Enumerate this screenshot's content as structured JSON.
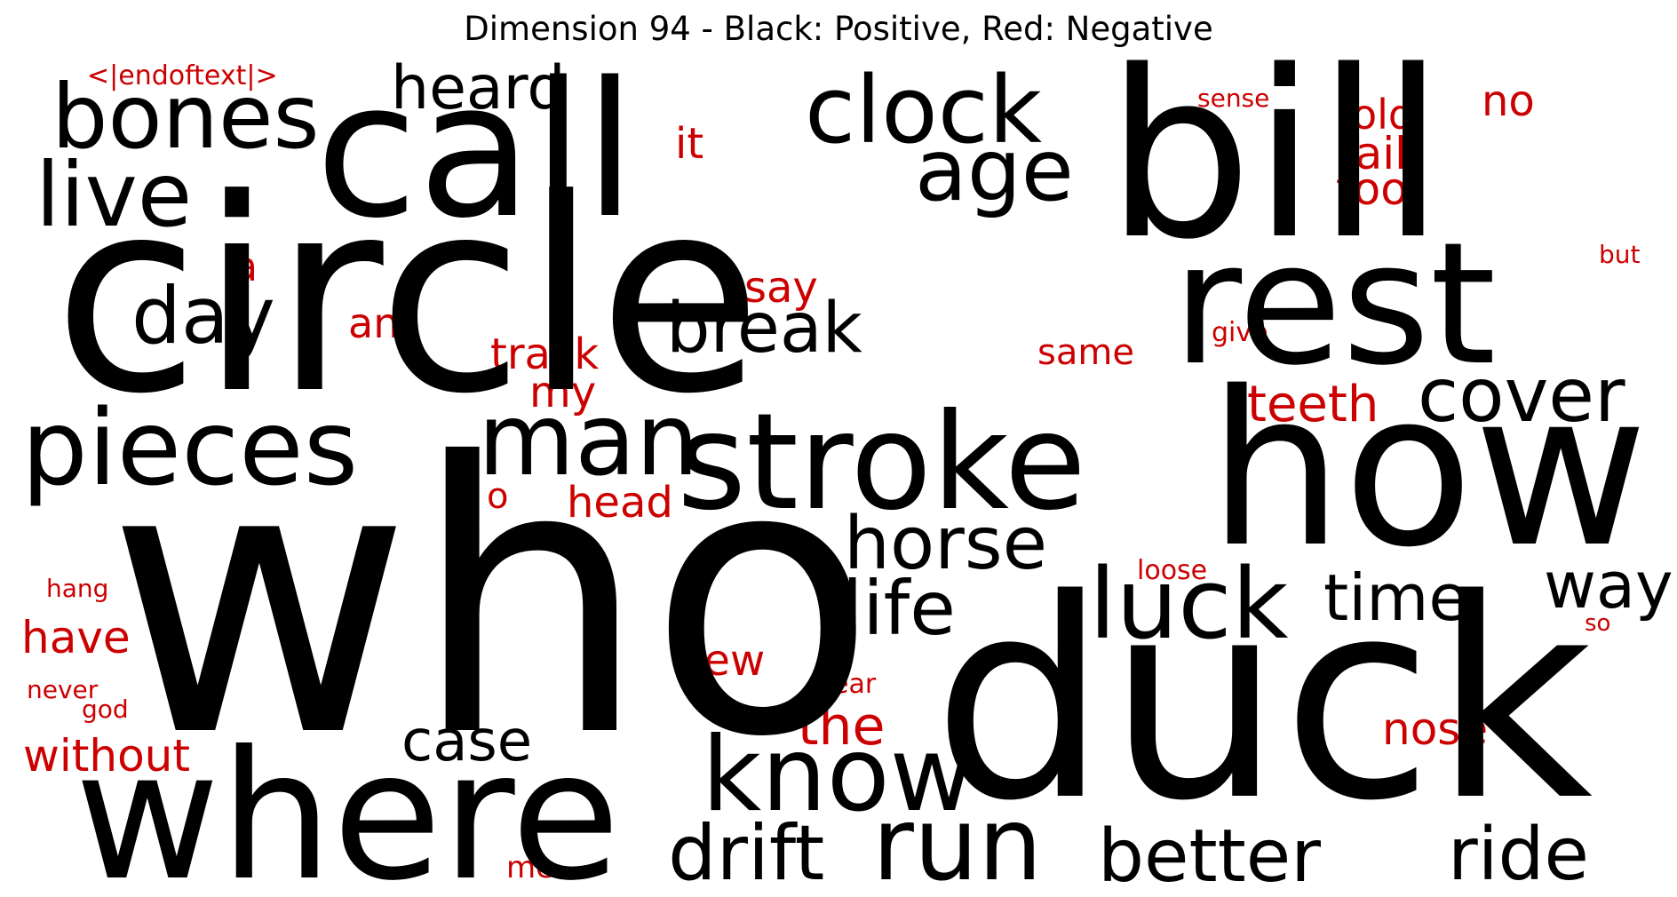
{
  "title": "Dimension 94 - Black: Positive, Red: Negative",
  "colors": {
    "positive": "#000000",
    "negative": "#cc0000",
    "background": "#ffffff"
  },
  "words": [
    {
      "text": "circle",
      "polarity": "positive"
    },
    {
      "text": "who",
      "polarity": "positive"
    },
    {
      "text": "duck",
      "polarity": "positive"
    },
    {
      "text": "call",
      "polarity": "positive"
    },
    {
      "text": "bill",
      "polarity": "positive"
    },
    {
      "text": "rest",
      "polarity": "positive"
    },
    {
      "text": "how",
      "polarity": "positive"
    },
    {
      "text": "where",
      "polarity": "positive"
    },
    {
      "text": "stroke",
      "polarity": "positive"
    },
    {
      "text": "clock",
      "polarity": "positive"
    },
    {
      "text": "bones",
      "polarity": "positive"
    },
    {
      "text": "live",
      "polarity": "positive"
    },
    {
      "text": "pieces",
      "polarity": "positive"
    },
    {
      "text": "man",
      "polarity": "positive"
    },
    {
      "text": "age",
      "polarity": "positive"
    },
    {
      "text": "heard",
      "polarity": "positive"
    },
    {
      "text": "day",
      "polarity": "positive"
    },
    {
      "text": "break",
      "polarity": "positive"
    },
    {
      "text": "cover",
      "polarity": "positive"
    },
    {
      "text": "horse",
      "polarity": "positive"
    },
    {
      "text": "luck",
      "polarity": "positive"
    },
    {
      "text": "life",
      "polarity": "positive"
    },
    {
      "text": "time",
      "polarity": "positive"
    },
    {
      "text": "way",
      "polarity": "positive"
    },
    {
      "text": "know",
      "polarity": "positive"
    },
    {
      "text": "case",
      "polarity": "positive"
    },
    {
      "text": "run",
      "polarity": "positive"
    },
    {
      "text": "drift",
      "polarity": "positive"
    },
    {
      "text": "better",
      "polarity": "positive"
    },
    {
      "text": "ride",
      "polarity": "positive"
    },
    {
      "text": "<|endoftext|>",
      "polarity": "negative"
    },
    {
      "text": "it",
      "polarity": "negative"
    },
    {
      "text": "sense",
      "polarity": "negative"
    },
    {
      "text": "old",
      "polarity": "negative"
    },
    {
      "text": "no",
      "polarity": "negative"
    },
    {
      "text": "tail",
      "polarity": "negative"
    },
    {
      "text": "too",
      "polarity": "negative"
    },
    {
      "text": "but",
      "polarity": "negative"
    },
    {
      "text": "a",
      "polarity": "negative"
    },
    {
      "text": "say",
      "polarity": "negative"
    },
    {
      "text": "an",
      "polarity": "negative"
    },
    {
      "text": "track",
      "polarity": "negative"
    },
    {
      "text": "my",
      "polarity": "negative"
    },
    {
      "text": "same",
      "polarity": "negative"
    },
    {
      "text": "give",
      "polarity": "negative"
    },
    {
      "text": "teeth",
      "polarity": "negative"
    },
    {
      "text": "o",
      "polarity": "negative"
    },
    {
      "text": "head",
      "polarity": "negative"
    },
    {
      "text": "loose",
      "polarity": "negative"
    },
    {
      "text": "hang",
      "polarity": "negative"
    },
    {
      "text": "have",
      "polarity": "negative"
    },
    {
      "text": "new",
      "polarity": "negative"
    },
    {
      "text": "so",
      "polarity": "negative"
    },
    {
      "text": "never",
      "polarity": "negative"
    },
    {
      "text": "god",
      "polarity": "negative"
    },
    {
      "text": "bear",
      "polarity": "negative"
    },
    {
      "text": "the",
      "polarity": "negative"
    },
    {
      "text": "nose",
      "polarity": "negative"
    },
    {
      "text": "without",
      "polarity": "negative"
    },
    {
      "text": "me",
      "polarity": "negative"
    }
  ]
}
